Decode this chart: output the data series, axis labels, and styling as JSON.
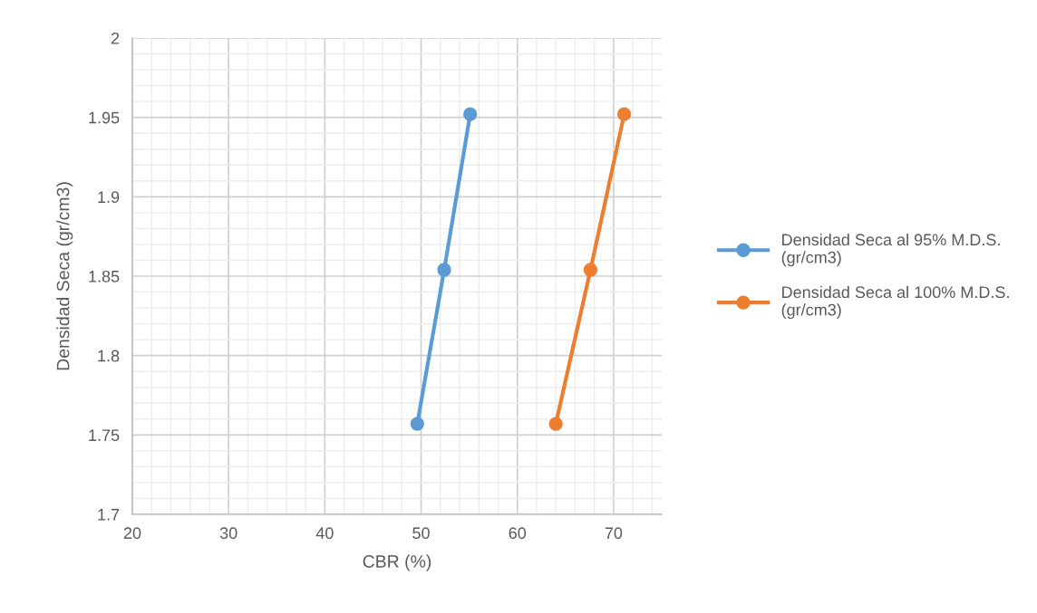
{
  "chart_data": {
    "type": "line",
    "xlabel": "CBR (%)",
    "ylabel": "Densidad Seca (gr/cm3)",
    "xlim": [
      20,
      75
    ],
    "xticks": [
      20,
      30,
      40,
      50,
      60,
      70
    ],
    "ylim": [
      1.7,
      2
    ],
    "yticks": [
      1.7,
      1.75,
      1.8,
      1.85,
      1.9,
      1.95,
      2
    ],
    "grid": true,
    "legend": "right",
    "marker": "circle",
    "line_style": "solid",
    "series": [
      {
        "name": "Densidad Seca al 95% M.D.S.\n(gr/cm3)",
        "color": "#5b9bd5",
        "x": [
          49.6,
          52.4,
          55.1
        ],
        "values": [
          1.757,
          1.854,
          1.952
        ]
      },
      {
        "name": "Densidad Seca al 100% M.D.S.\n(gr/cm3)",
        "color": "#ed7d31",
        "x": [
          64.0,
          67.6,
          71.1
        ],
        "values": [
          1.757,
          1.854,
          1.952
        ]
      }
    ]
  }
}
